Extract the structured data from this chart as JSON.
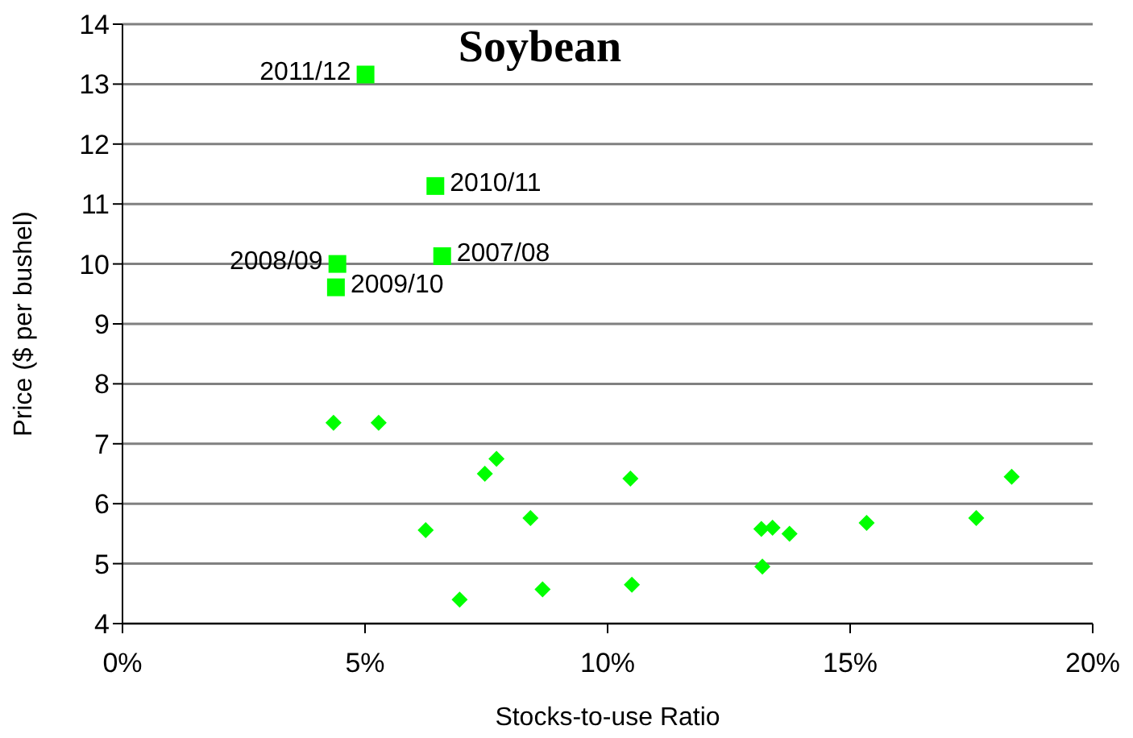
{
  "chart_data": {
    "type": "scatter",
    "title": "Soybean",
    "xlabel": "Stocks-to-use Ratio",
    "ylabel": "Price ($ per bushel)",
    "xlim": [
      0,
      20
    ],
    "xticks": [
      {
        "value": 0,
        "label": "0%"
      },
      {
        "value": 5,
        "label": "5%"
      },
      {
        "value": 10,
        "label": "10%"
      },
      {
        "value": 15,
        "label": "15%"
      },
      {
        "value": 20,
        "label": "20%"
      }
    ],
    "ylim": [
      4,
      14
    ],
    "yticks": [
      4,
      5,
      6,
      7,
      8,
      9,
      10,
      11,
      12,
      13,
      14
    ],
    "grid": "y",
    "legend": false,
    "series": [
      {
        "color": "#00ff00",
        "marker": "square",
        "x": [
          5.01,
          6.45,
          4.43,
          6.59,
          4.4
        ],
        "values": [
          13.16,
          11.3,
          10.0,
          10.13,
          9.61
        ]
      },
      {
        "color": "#00ff00",
        "marker": "diamond",
        "x": [
          4.35,
          5.28,
          6.25,
          7.47,
          7.71,
          6.95,
          8.41,
          8.66,
          10.47,
          10.5,
          13.17,
          13.4,
          13.75,
          13.19,
          15.34,
          17.6,
          18.33
        ],
        "values": [
          7.35,
          7.35,
          5.56,
          6.5,
          6.75,
          4.4,
          5.76,
          4.57,
          6.42,
          4.65,
          5.58,
          5.6,
          5.5,
          4.95,
          5.68,
          5.76,
          6.45
        ]
      }
    ],
    "annotations": [
      {
        "text": "2011/12",
        "x": 5.01,
        "y": 13.16
      },
      {
        "text": "2010/11",
        "x": 6.45,
        "y": 11.3
      },
      {
        "text": "2008/09",
        "x": 4.43,
        "y": 10.0
      },
      {
        "text": "2007/08",
        "x": 6.59,
        "y": 10.13
      },
      {
        "text": "2009/10",
        "x": 4.4,
        "y": 9.61
      }
    ]
  }
}
